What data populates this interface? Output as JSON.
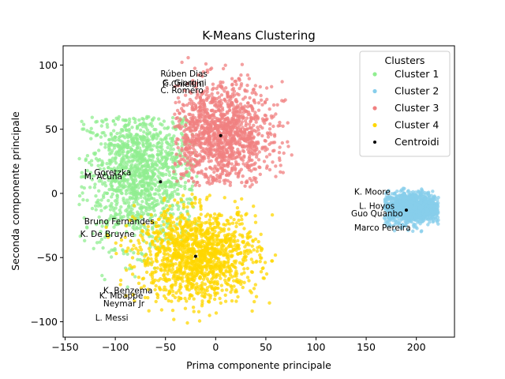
{
  "chart_data": {
    "type": "scatter",
    "title": "K-Means Clustering",
    "xlabel": "Prima componente principale",
    "ylabel": "Seconda componente principale",
    "xlim": [
      -152,
      238
    ],
    "ylim": [
      -112,
      115
    ],
    "xticks": [
      -150,
      -100,
      -50,
      0,
      50,
      100,
      150,
      200
    ],
    "yticks": [
      -100,
      -50,
      0,
      50,
      100
    ],
    "grid": false,
    "legend": {
      "title": "Clusters",
      "placement": "top-right",
      "entries": [
        "Cluster 1",
        "Cluster 2",
        "Cluster 3",
        "Cluster 4",
        "Centroidi"
      ]
    },
    "series": [
      {
        "name": "Cluster 1",
        "color": "#90ee90",
        "region": {
          "type": "blob",
          "center": [
            -75,
            15
          ],
          "spread": [
            28,
            28
          ],
          "x_range": [
            -137,
            -18
          ],
          "y_range": [
            -73,
            60
          ]
        }
      },
      {
        "name": "Cluster 2",
        "color": "#87ceeb",
        "region": {
          "type": "blob",
          "center": [
            195,
            -11
          ],
          "spread": [
            16,
            6
          ],
          "x_range": [
            168,
            222
          ],
          "y_range": [
            -38,
            4
          ]
        }
      },
      {
        "name": "Cluster 3",
        "color": "#f08080",
        "region": {
          "type": "blob",
          "center": [
            5,
            45
          ],
          "spread": [
            26,
            20
          ],
          "x_range": [
            -42,
            82
          ],
          "y_range": [
            5,
            106
          ]
        }
      },
      {
        "name": "Cluster 4",
        "color": "#ffd700",
        "region": {
          "type": "blob",
          "center": [
            -18,
            -48
          ],
          "spread": [
            30,
            18
          ],
          "x_range": [
            -110,
            60
          ],
          "y_range": [
            -101,
            0
          ]
        }
      }
    ],
    "centroids": {
      "name": "Centroidi",
      "color": "#000000",
      "points": [
        [
          -55,
          9
        ],
        [
          190,
          -13
        ],
        [
          5,
          45
        ],
        [
          -20,
          -49
        ]
      ]
    },
    "annotations": [
      {
        "text": "Rúben Dias",
        "x": -55,
        "y": 91
      },
      {
        "text": "F. Chiellini",
        "x": -53,
        "y": 83
      },
      {
        "text": "C. Romero",
        "x": -55,
        "y": 78
      },
      {
        "text": "G. Giorgini",
        "x": -53,
        "y": 84
      },
      {
        "text": "L. Goretzka",
        "x": -131,
        "y": 14
      },
      {
        "text": "M. Acuña",
        "x": -131,
        "y": 11
      },
      {
        "text": "Bruno Fernandes",
        "x": -131,
        "y": -24
      },
      {
        "text": "K. De Bruyne",
        "x": -135,
        "y": -34
      },
      {
        "text": "K. Moore",
        "x": 138,
        "y": -1
      },
      {
        "text": "L. Hoyos",
        "x": 143,
        "y": -12
      },
      {
        "text": "Guo Quanbo",
        "x": 135,
        "y": -18
      },
      {
        "text": "Marco Pereira",
        "x": 138,
        "y": -29
      },
      {
        "text": "K. Benzema",
        "x": -112,
        "y": -78
      },
      {
        "text": "K. Mbappé",
        "x": -116,
        "y": -82
      },
      {
        "text": "Neymar Jr",
        "x": -112,
        "y": -88
      },
      {
        "text": "L. Messi",
        "x": -120,
        "y": -99
      }
    ]
  }
}
